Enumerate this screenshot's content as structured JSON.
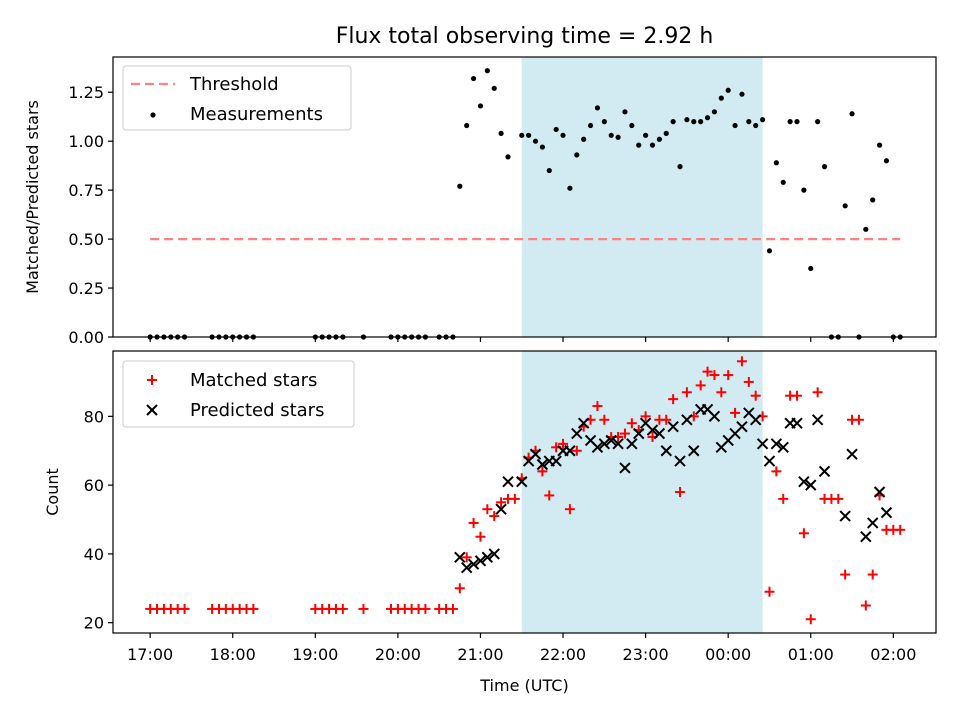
{
  "chart_data": [
    {
      "type": "scatter",
      "title": "Flux total observing time = 2.92 h",
      "ylabel": "Matched/Predicted stars",
      "xlabel": "",
      "ylim": [
        0,
        1.43
      ],
      "yticks": [
        "0.00",
        "0.25",
        "0.50",
        "0.75",
        "1.00",
        "1.25"
      ],
      "legend_position": "upper-left",
      "grid": false,
      "shaded_span": {
        "from": "21:30",
        "to": "00:25",
        "color": "#add8e6"
      },
      "series": [
        {
          "name": "Threshold",
          "kind": "line",
          "style": "dashed",
          "color": "#ff8080",
          "points": [
            [
              "17:00",
              0.5
            ],
            [
              "02:05",
              0.5
            ]
          ]
        },
        {
          "name": "Measurements",
          "kind": "scatter",
          "color": "#000000",
          "points": [
            [
              "17:00",
              0
            ],
            [
              "17:05",
              0
            ],
            [
              "17:10",
              0
            ],
            [
              "17:15",
              0
            ],
            [
              "17:20",
              0
            ],
            [
              "17:25",
              0
            ],
            [
              "17:45",
              0
            ],
            [
              "17:50",
              0
            ],
            [
              "17:55",
              0
            ],
            [
              "18:00",
              0
            ],
            [
              "18:05",
              0
            ],
            [
              "18:10",
              0
            ],
            [
              "18:15",
              0
            ],
            [
              "19:00",
              0
            ],
            [
              "19:05",
              0
            ],
            [
              "19:10",
              0
            ],
            [
              "19:15",
              0
            ],
            [
              "19:20",
              0
            ],
            [
              "19:35",
              0
            ],
            [
              "19:55",
              0
            ],
            [
              "20:00",
              0
            ],
            [
              "20:05",
              0
            ],
            [
              "20:10",
              0
            ],
            [
              "20:15",
              0
            ],
            [
              "20:20",
              0
            ],
            [
              "20:30",
              0
            ],
            [
              "20:35",
              0
            ],
            [
              "20:40",
              0
            ],
            [
              "20:45",
              0.77
            ],
            [
              "20:50",
              1.08
            ],
            [
              "20:55",
              1.32
            ],
            [
              "21:00",
              1.18
            ],
            [
              "21:05",
              1.36
            ],
            [
              "21:10",
              1.27
            ],
            [
              "21:15",
              1.04
            ],
            [
              "21:20",
              0.92
            ],
            [
              "21:30",
              1.03
            ],
            [
              "21:35",
              1.03
            ],
            [
              "21:40",
              1.0
            ],
            [
              "21:45",
              0.97
            ],
            [
              "21:50",
              0.85
            ],
            [
              "21:55",
              1.06
            ],
            [
              "22:00",
              1.03
            ],
            [
              "22:05",
              0.76
            ],
            [
              "22:10",
              0.93
            ],
            [
              "22:15",
              1.01
            ],
            [
              "22:20",
              1.08
            ],
            [
              "22:25",
              1.17
            ],
            [
              "22:30",
              1.1
            ],
            [
              "22:35",
              1.03
            ],
            [
              "22:40",
              1.02
            ],
            [
              "22:45",
              1.15
            ],
            [
              "22:50",
              1.08
            ],
            [
              "22:55",
              0.98
            ],
            [
              "23:00",
              1.03
            ],
            [
              "23:05",
              0.98
            ],
            [
              "23:10",
              1.01
            ],
            [
              "23:15",
              1.04
            ],
            [
              "23:20",
              1.1
            ],
            [
              "23:25",
              0.87
            ],
            [
              "23:30",
              1.11
            ],
            [
              "23:35",
              1.1
            ],
            [
              "23:40",
              1.1
            ],
            [
              "23:45",
              1.12
            ],
            [
              "23:50",
              1.15
            ],
            [
              "23:55",
              1.22
            ],
            [
              "00:00",
              1.26
            ],
            [
              "00:05",
              1.08
            ],
            [
              "00:10",
              1.24
            ],
            [
              "00:15",
              1.1
            ],
            [
              "00:20",
              1.08
            ],
            [
              "00:25",
              1.11
            ],
            [
              "00:30",
              0.44
            ],
            [
              "00:35",
              0.89
            ],
            [
              "00:40",
              0.79
            ],
            [
              "00:45",
              1.1
            ],
            [
              "00:50",
              1.1
            ],
            [
              "00:55",
              0.75
            ],
            [
              "01:00",
              0.35
            ],
            [
              "01:05",
              1.1
            ],
            [
              "01:10",
              0.87
            ],
            [
              "01:15",
              0
            ],
            [
              "01:20",
              0
            ],
            [
              "01:25",
              0.67
            ],
            [
              "01:30",
              1.14
            ],
            [
              "01:35",
              0
            ],
            [
              "01:40",
              0.55
            ],
            [
              "01:45",
              0.7
            ],
            [
              "01:50",
              0.98
            ],
            [
              "01:55",
              0.9
            ],
            [
              "02:00",
              0
            ],
            [
              "02:05",
              0
            ]
          ]
        }
      ]
    },
    {
      "type": "scatter",
      "title": "",
      "ylabel": "Count",
      "xlabel": "Time (UTC)",
      "ylim": [
        17,
        99
      ],
      "yticks": [
        "20",
        "40",
        "60",
        "80"
      ],
      "xticks": [
        "17:00",
        "18:00",
        "19:00",
        "20:00",
        "21:00",
        "22:00",
        "23:00",
        "00:00",
        "01:00",
        "02:00"
      ],
      "legend_position": "upper-left",
      "grid": false,
      "shaded_span": {
        "from": "21:30",
        "to": "00:25",
        "color": "#add8e6"
      },
      "series": [
        {
          "name": "Matched stars",
          "kind": "scatter",
          "marker": "plus",
          "color": "#ff0000",
          "points": [
            [
              "17:00",
              24
            ],
            [
              "17:05",
              24
            ],
            [
              "17:10",
              24
            ],
            [
              "17:15",
              24
            ],
            [
              "17:20",
              24
            ],
            [
              "17:25",
              24
            ],
            [
              "17:45",
              24
            ],
            [
              "17:50",
              24
            ],
            [
              "17:55",
              24
            ],
            [
              "18:00",
              24
            ],
            [
              "18:05",
              24
            ],
            [
              "18:10",
              24
            ],
            [
              "18:15",
              24
            ],
            [
              "19:00",
              24
            ],
            [
              "19:05",
              24
            ],
            [
              "19:10",
              24
            ],
            [
              "19:15",
              24
            ],
            [
              "19:20",
              24
            ],
            [
              "19:35",
              24
            ],
            [
              "19:55",
              24
            ],
            [
              "20:00",
              24
            ],
            [
              "20:05",
              24
            ],
            [
              "20:10",
              24
            ],
            [
              "20:15",
              24
            ],
            [
              "20:20",
              24
            ],
            [
              "20:30",
              24
            ],
            [
              "20:35",
              24
            ],
            [
              "20:40",
              24
            ],
            [
              "20:45",
              30
            ],
            [
              "20:50",
              39
            ],
            [
              "20:55",
              49
            ],
            [
              "21:00",
              45
            ],
            [
              "21:05",
              53
            ],
            [
              "21:10",
              51
            ],
            [
              "21:15",
              55
            ],
            [
              "21:20",
              56
            ],
            [
              "21:25",
              56
            ],
            [
              "21:30",
              62
            ],
            [
              "21:35",
              68
            ],
            [
              "21:40",
              70
            ],
            [
              "21:45",
              64
            ],
            [
              "21:50",
              57
            ],
            [
              "21:55",
              71
            ],
            [
              "22:00",
              72
            ],
            [
              "22:05",
              53
            ],
            [
              "22:10",
              70
            ],
            [
              "22:15",
              77
            ],
            [
              "22:20",
              79
            ],
            [
              "22:25",
              83
            ],
            [
              "22:30",
              79
            ],
            [
              "22:35",
              74
            ],
            [
              "22:40",
              74
            ],
            [
              "22:45",
              75
            ],
            [
              "22:50",
              78
            ],
            [
              "22:55",
              76
            ],
            [
              "23:00",
              80
            ],
            [
              "23:05",
              74
            ],
            [
              "23:10",
              79
            ],
            [
              "23:15",
              79
            ],
            [
              "23:20",
              85
            ],
            [
              "23:25",
              58
            ],
            [
              "23:30",
              87
            ],
            [
              "23:35",
              80
            ],
            [
              "23:40",
              89
            ],
            [
              "23:45",
              93
            ],
            [
              "23:50",
              92
            ],
            [
              "23:55",
              87
            ],
            [
              "00:00",
              92
            ],
            [
              "00:05",
              81
            ],
            [
              "00:10",
              96
            ],
            [
              "00:15",
              90
            ],
            [
              "00:20",
              86
            ],
            [
              "00:25",
              80
            ],
            [
              "00:30",
              29
            ],
            [
              "00:35",
              64
            ],
            [
              "00:40",
              56
            ],
            [
              "00:45",
              86
            ],
            [
              "00:50",
              86
            ],
            [
              "00:55",
              46
            ],
            [
              "01:00",
              21
            ],
            [
              "01:05",
              87
            ],
            [
              "01:10",
              56
            ],
            [
              "01:15",
              56
            ],
            [
              "01:20",
              56
            ],
            [
              "01:25",
              34
            ],
            [
              "01:30",
              79
            ],
            [
              "01:35",
              79
            ],
            [
              "01:40",
              25
            ],
            [
              "01:45",
              34
            ],
            [
              "01:50",
              57
            ],
            [
              "01:55",
              47
            ],
            [
              "02:00",
              47
            ],
            [
              "02:05",
              47
            ]
          ]
        },
        {
          "name": "Predicted stars",
          "kind": "scatter",
          "marker": "x",
          "color": "#000000",
          "points": [
            [
              "20:45",
              39
            ],
            [
              "20:50",
              36
            ],
            [
              "20:55",
              37
            ],
            [
              "21:00",
              38
            ],
            [
              "21:05",
              39
            ],
            [
              "21:10",
              40
            ],
            [
              "21:15",
              53
            ],
            [
              "21:20",
              61
            ],
            [
              "21:30",
              61
            ],
            [
              "21:35",
              67
            ],
            [
              "21:40",
              69
            ],
            [
              "21:45",
              66
            ],
            [
              "21:50",
              67
            ],
            [
              "21:55",
              67
            ],
            [
              "22:00",
              70
            ],
            [
              "22:05",
              70
            ],
            [
              "22:10",
              75
            ],
            [
              "22:15",
              78
            ],
            [
              "22:20",
              73
            ],
            [
              "22:25",
              71
            ],
            [
              "22:30",
              72
            ],
            [
              "22:35",
              73
            ],
            [
              "22:40",
              72
            ],
            [
              "22:45",
              65
            ],
            [
              "22:50",
              72
            ],
            [
              "22:55",
              75
            ],
            [
              "23:00",
              78
            ],
            [
              "23:05",
              76
            ],
            [
              "23:10",
              75
            ],
            [
              "23:15",
              70
            ],
            [
              "23:20",
              77
            ],
            [
              "23:25",
              67
            ],
            [
              "23:30",
              79
            ],
            [
              "23:35",
              70
            ],
            [
              "23:40",
              82
            ],
            [
              "23:45",
              82
            ],
            [
              "23:50",
              80
            ],
            [
              "23:55",
              71
            ],
            [
              "00:00",
              73
            ],
            [
              "00:05",
              75
            ],
            [
              "00:10",
              77
            ],
            [
              "00:15",
              81
            ],
            [
              "00:20",
              79
            ],
            [
              "00:25",
              72
            ],
            [
              "00:30",
              67
            ],
            [
              "00:35",
              72
            ],
            [
              "00:40",
              71
            ],
            [
              "00:45",
              78
            ],
            [
              "00:50",
              78
            ],
            [
              "00:55",
              61
            ],
            [
              "01:00",
              60
            ],
            [
              "01:05",
              79
            ],
            [
              "01:10",
              64
            ],
            [
              "01:25",
              51
            ],
            [
              "01:30",
              69
            ],
            [
              "01:40",
              45
            ],
            [
              "01:45",
              49
            ],
            [
              "01:50",
              58
            ],
            [
              "01:55",
              52
            ]
          ]
        }
      ]
    }
  ]
}
